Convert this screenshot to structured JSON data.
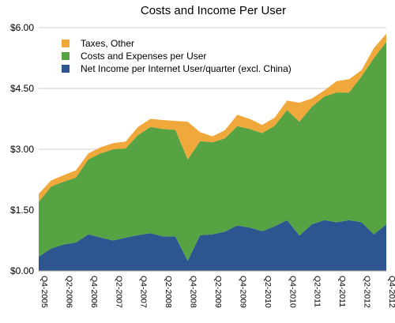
{
  "chart_data": {
    "type": "area",
    "title": "Costs and Income Per User",
    "xlabel": "",
    "ylabel": "",
    "ylim": [
      0,
      6
    ],
    "yticks": [
      {
        "value": 0,
        "label": "$0.00"
      },
      {
        "value": 1.5,
        "label": "$1.50"
      },
      {
        "value": 3,
        "label": "$3.00"
      },
      {
        "value": 4.5,
        "label": "$4.50"
      },
      {
        "value": 6,
        "label": "$6.00"
      }
    ],
    "grid": true,
    "stacked": true,
    "legend_position": "top-left",
    "categories": [
      "Q4-2005",
      "Q1-2006",
      "Q2-2006",
      "Q3-2006",
      "Q4-2006",
      "Q1-2007",
      "Q2-2007",
      "Q3-2007",
      "Q4-2007",
      "Q1-2008",
      "Q2-2008",
      "Q3-2008",
      "Q4-2008",
      "Q1-2009",
      "Q2-2009",
      "Q3-2009",
      "Q4-2009",
      "Q1-2010",
      "Q2-2010",
      "Q3-2010",
      "Q4-2010",
      "Q1-2011",
      "Q2-2011",
      "Q3-2011",
      "Q4-2011",
      "Q1-2012",
      "Q2-2012",
      "Q3-2012",
      "Q4-2012"
    ],
    "tick_labels": [
      "Q4-2005",
      "",
      "Q2-2006",
      "",
      "Q4-2006",
      "",
      "Q2-2007",
      "",
      "Q4-2007",
      "",
      "Q2-2008",
      "",
      "Q4-2008",
      "",
      "Q2-2009",
      "",
      "Q4-2009",
      "",
      "Q2-2010",
      "",
      "Q4-2010",
      "",
      "Q2-2011",
      "",
      "Q4-2011",
      "",
      "Q2-2012",
      "",
      "Q4-2012"
    ],
    "series": [
      {
        "name": "Net Income per Internet User/quarter (excl. China)",
        "color": "#2d5590",
        "values": [
          0.35,
          0.55,
          0.65,
          0.7,
          0.9,
          0.82,
          0.75,
          0.82,
          0.88,
          0.93,
          0.85,
          0.85,
          0.25,
          0.88,
          0.9,
          0.97,
          1.12,
          1.07,
          0.98,
          1.1,
          1.25,
          0.87,
          1.15,
          1.25,
          1.2,
          1.25,
          1.2,
          0.9,
          1.15
        ]
      },
      {
        "name": "Costs and Expenses per User",
        "color": "#57a343",
        "values": [
          1.35,
          1.53,
          1.55,
          1.6,
          1.85,
          2.08,
          2.25,
          2.2,
          2.47,
          2.62,
          2.65,
          2.63,
          2.5,
          2.32,
          2.27,
          2.3,
          2.45,
          2.43,
          2.42,
          2.48,
          2.72,
          2.81,
          2.9,
          3.05,
          3.2,
          3.15,
          3.6,
          4.35,
          4.5
        ]
      },
      {
        "name": "Taxes, Other",
        "color": "#f0a83a",
        "values": [
          0.2,
          0.15,
          0.16,
          0.18,
          0.15,
          0.15,
          0.15,
          0.17,
          0.2,
          0.2,
          0.22,
          0.22,
          0.93,
          0.22,
          0.15,
          0.2,
          0.28,
          0.25,
          0.2,
          0.2,
          0.23,
          0.47,
          0.2,
          0.15,
          0.28,
          0.33,
          0.15,
          0.25,
          0.2
        ]
      }
    ]
  }
}
